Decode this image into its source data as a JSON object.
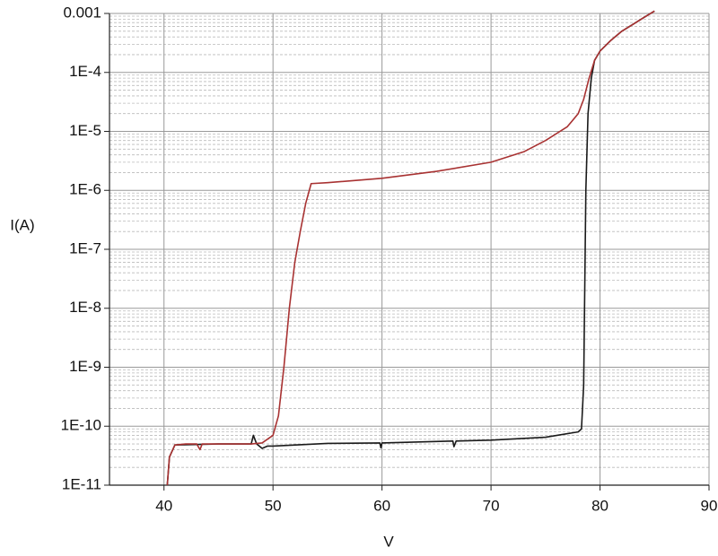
{
  "chart_data": {
    "type": "line",
    "x_label": "V",
    "y_label": "I(A)",
    "xlim": [
      35,
      90
    ],
    "xticks": [
      40,
      50,
      60,
      70,
      80,
      90
    ],
    "ylim": [
      1e-11,
      0.001
    ],
    "log_y": true,
    "grid": true,
    "yticks": [
      {
        "value": 1e-11,
        "label": "1E-11"
      },
      {
        "value": 1e-10,
        "label": "1E-10"
      },
      {
        "value": 1e-09,
        "label": "1E-9"
      },
      {
        "value": 1e-08,
        "label": "1E-8"
      },
      {
        "value": 1e-07,
        "label": "1E-7"
      },
      {
        "value": 1e-06,
        "label": "1E-6"
      },
      {
        "value": 1e-05,
        "label": "1E-5"
      },
      {
        "value": 0.0001,
        "label": "1E-4"
      },
      0.001
    ],
    "series": [
      {
        "color": "#1a1a1a",
        "x": [
          40.3,
          40.5,
          41,
          45,
          48,
          48.2,
          48.5,
          49,
          49.5,
          50,
          55,
          59.8,
          59.9,
          60,
          66.5,
          66.6,
          66.8,
          70,
          75,
          78,
          78.3,
          78.5,
          78.7,
          78.9,
          79.2,
          79.5,
          80,
          81,
          82,
          83,
          84,
          85
        ],
        "values": [
          1e-11,
          3e-11,
          4.8e-11,
          5e-11,
          5e-11,
          7e-11,
          5e-11,
          4.2e-11,
          4.6e-11,
          4.6e-11,
          5.1e-11,
          5.2e-11,
          4.3e-11,
          5.2e-11,
          5.6e-11,
          4.5e-11,
          5.6e-11,
          5.8e-11,
          6.5e-11,
          8e-11,
          9e-11,
          5e-10,
          1e-06,
          2e-05,
          8e-05,
          0.00016,
          0.00023,
          0.00035,
          0.0005,
          0.00065,
          0.00085,
          0.0011
        ]
      },
      {
        "color": "#a83232",
        "x": [
          40.3,
          40.5,
          41,
          42,
          43,
          43.3,
          43.5,
          45,
          48,
          49,
          50,
          50.5,
          51,
          51.5,
          52,
          52.5,
          53,
          53.5,
          55,
          60,
          65,
          70,
          73,
          75,
          77,
          78,
          78.5,
          79,
          79.5,
          80,
          81,
          82,
          83,
          84,
          85
        ],
        "values": [
          1e-11,
          3e-11,
          4.8e-11,
          5e-11,
          5e-11,
          4e-11,
          5e-11,
          5e-11,
          5e-11,
          5.2e-11,
          7e-11,
          1.5e-10,
          1e-09,
          1e-08,
          6e-08,
          2e-07,
          6e-07,
          1.3e-06,
          1.35e-06,
          1.6e-06,
          2.1e-06,
          3e-06,
          4.5e-06,
          7e-06,
          1.2e-05,
          2e-05,
          3.5e-05,
          8e-05,
          0.00016,
          0.00023,
          0.00035,
          0.0005,
          0.00065,
          0.00085,
          0.0011
        ]
      }
    ]
  }
}
